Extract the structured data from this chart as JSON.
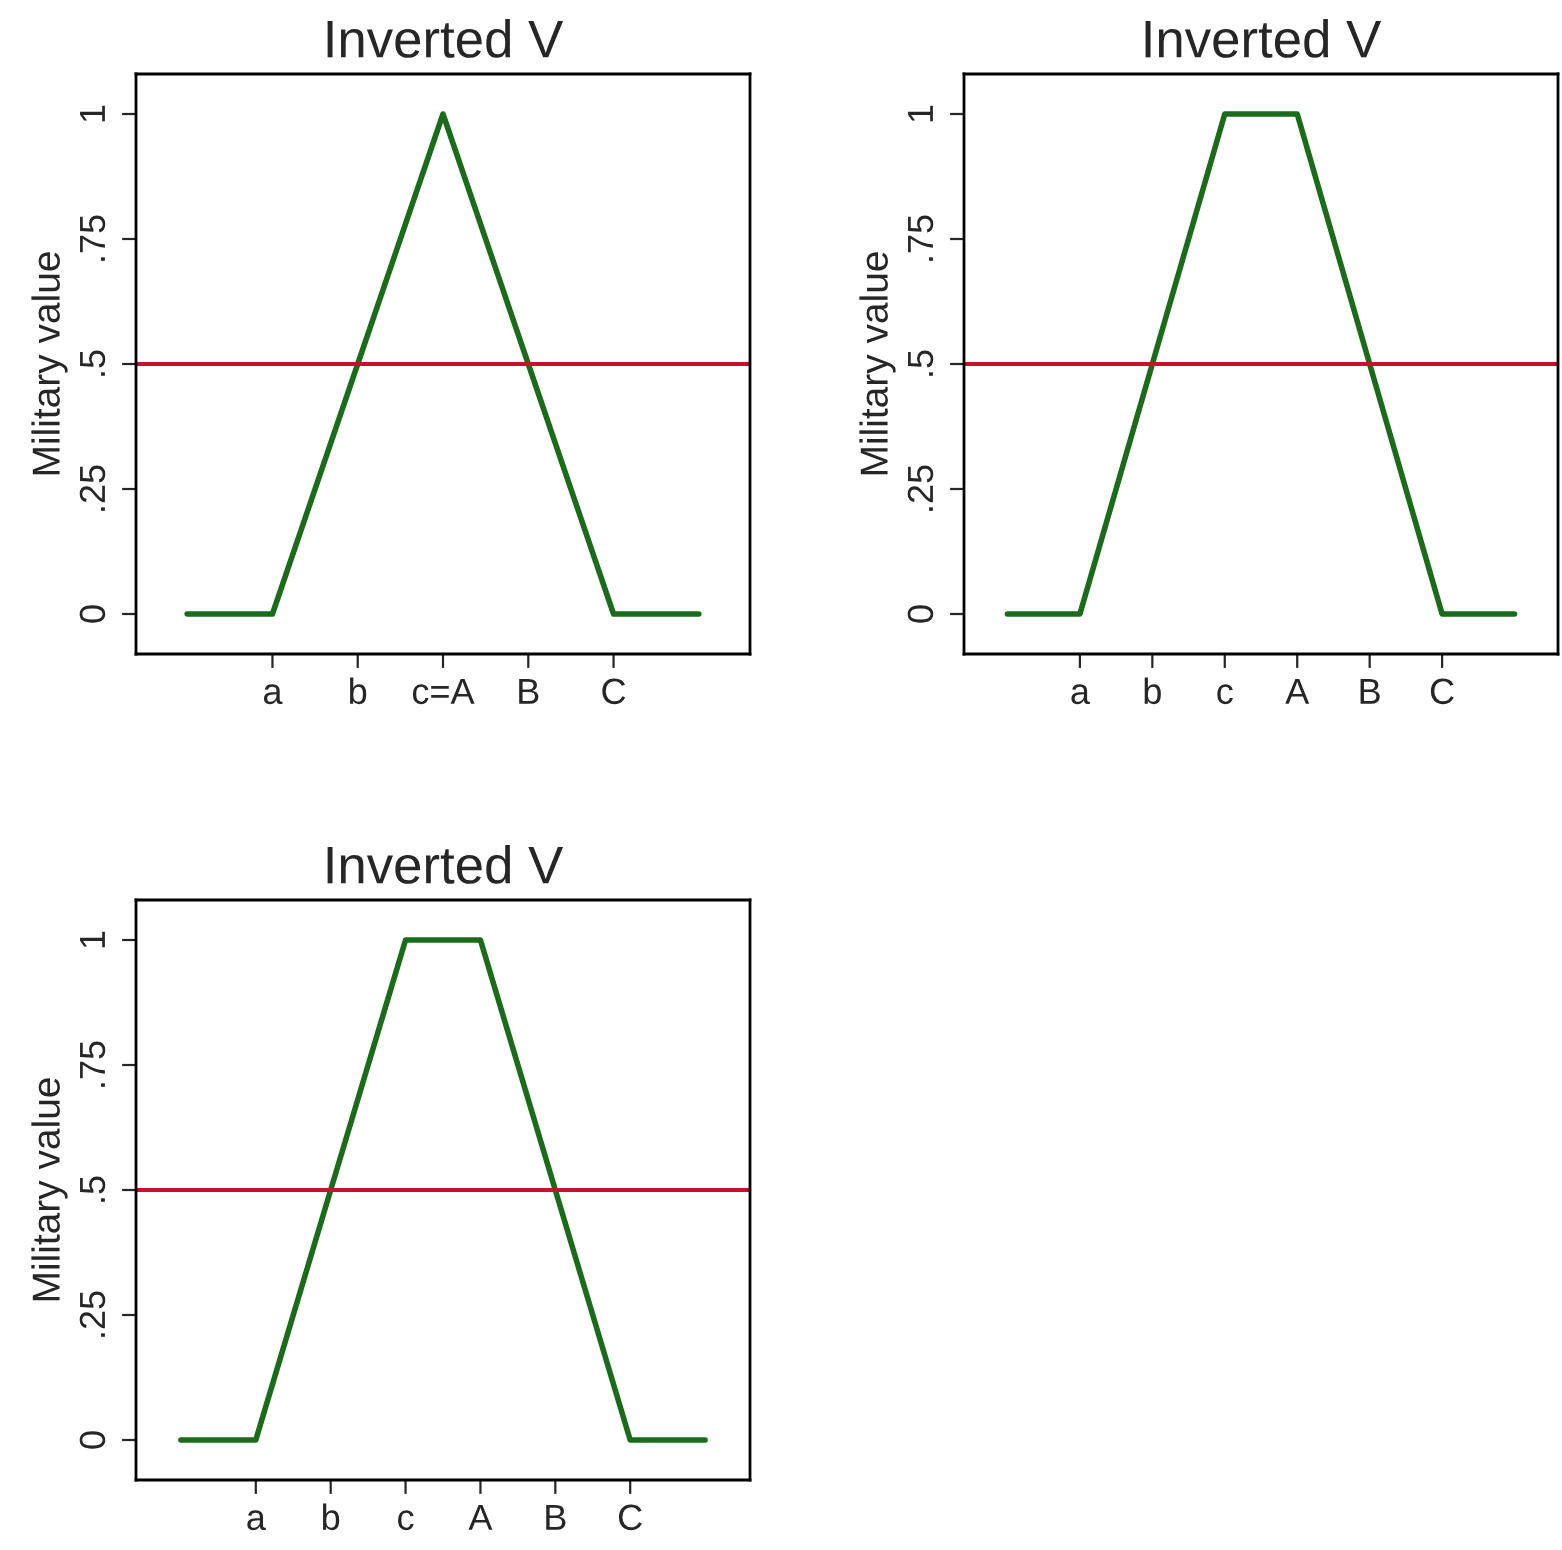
{
  "chart_data": [
    {
      "type": "line",
      "title": "Inverted V",
      "ylabel": "Military value",
      "categories": [
        null,
        "a",
        "b",
        "c=A",
        "B",
        "C",
        null
      ],
      "series": [
        {
          "color": "#1a6b1a",
          "values": [
            0,
            0,
            0.5,
            1,
            0.5,
            0,
            0
          ]
        }
      ],
      "ylim": [
        -0.08,
        1.08
      ],
      "yticks": [
        0,
        {
          "value": 0.25,
          "label": ".25"
        },
        {
          "value": 0.5,
          "label": ".5"
        },
        {
          "value": 0.75,
          "label": ".75"
        },
        1
      ],
      "ref_lines": [
        {
          "axis": "y",
          "value": 0.5,
          "color": "#c8102e"
        }
      ],
      "line_style": "solid"
    },
    {
      "type": "line",
      "title": "Inverted V",
      "ylabel": "Military value",
      "categories": [
        null,
        "a",
        "b",
        "c",
        "A",
        "B",
        "C",
        null
      ],
      "series": [
        {
          "color": "#1a6b1a",
          "values": [
            0,
            0,
            0.5,
            1,
            1,
            0.5,
            0,
            0
          ]
        }
      ],
      "ylim": [
        -0.08,
        1.08
      ],
      "yticks": [
        0,
        {
          "value": 0.25,
          "label": ".25"
        },
        {
          "value": 0.5,
          "label": ".5"
        },
        {
          "value": 0.75,
          "label": ".75"
        },
        1
      ],
      "ref_lines": [
        {
          "axis": "y",
          "value": 0.5,
          "color": "#c8102e"
        }
      ],
      "line_style": "solid"
    },
    {
      "type": "line",
      "title": "Inverted V",
      "ylabel": "Military value",
      "categories": [
        null,
        "a",
        "b",
        "c",
        "A",
        "B",
        "C",
        null
      ],
      "series": [
        {
          "color": "#1a6b1a",
          "values": [
            0,
            0,
            0.5,
            1,
            1,
            0.5,
            0,
            0
          ]
        }
      ],
      "ylim": [
        -0.08,
        1.08
      ],
      "yticks": [
        0,
        {
          "value": 0.25,
          "label": ".25"
        },
        {
          "value": 0.5,
          "label": ".5"
        },
        {
          "value": 0.75,
          "label": ".75"
        },
        1
      ],
      "ref_lines": [
        {
          "axis": "y",
          "value": 0.5,
          "color": "#c8102e"
        }
      ],
      "line_style": "solid"
    }
  ]
}
